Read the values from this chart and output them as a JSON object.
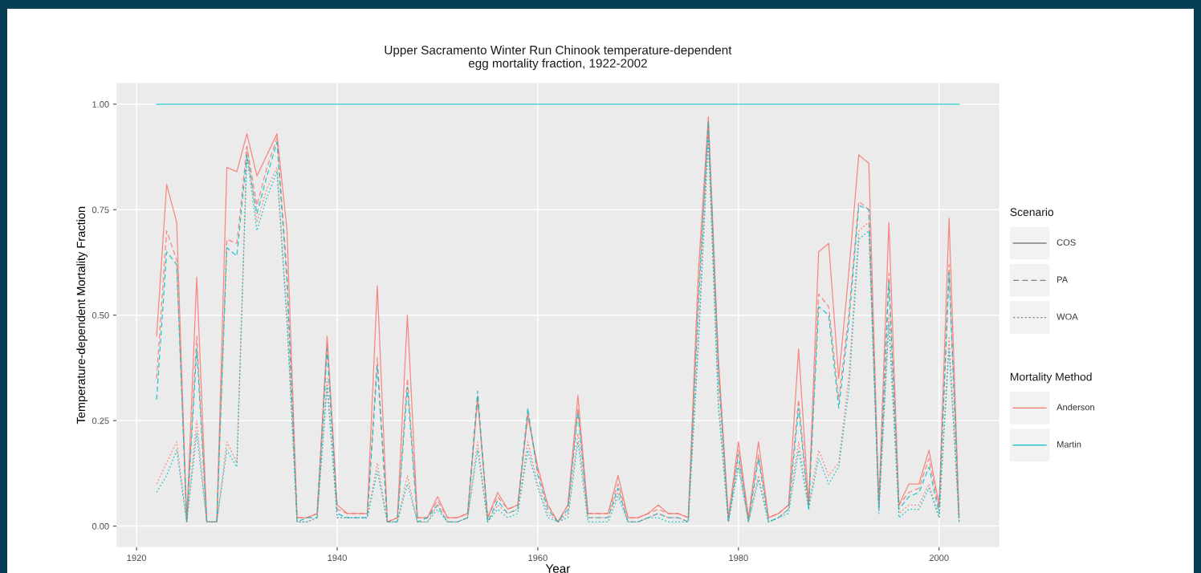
{
  "chart_data": {
    "type": "line",
    "title": "Upper Sacramento Winter Run Chinook temperature-dependent\negg mortality fraction, 1922-2002",
    "xlabel": "Year",
    "ylabel": "Temperature-dependent Mortality Fraction",
    "x": [
      1922,
      1923,
      1924,
      1925,
      1926,
      1927,
      1928,
      1929,
      1930,
      1931,
      1932,
      1933,
      1934,
      1935,
      1936,
      1937,
      1938,
      1939,
      1940,
      1941,
      1942,
      1943,
      1944,
      1945,
      1946,
      1947,
      1948,
      1949,
      1950,
      1951,
      1952,
      1953,
      1954,
      1955,
      1956,
      1957,
      1958,
      1959,
      1960,
      1961,
      1962,
      1963,
      1964,
      1965,
      1966,
      1967,
      1968,
      1969,
      1970,
      1971,
      1972,
      1973,
      1974,
      1975,
      1976,
      1977,
      1978,
      1979,
      1980,
      1981,
      1982,
      1983,
      1984,
      1985,
      1986,
      1987,
      1988,
      1989,
      1990,
      1991,
      1992,
      1993,
      1994,
      1995,
      1996,
      1997,
      1998,
      1999,
      2000,
      2001,
      2002
    ],
    "xlim": [
      1918,
      2006
    ],
    "xticks": [
      1920,
      1940,
      1960,
      1980,
      2000
    ],
    "ylim": [
      -0.05,
      1.05
    ],
    "yticks": [
      {
        "value": 0,
        "label": "0.00"
      },
      {
        "value": 0.25,
        "label": "0.25"
      },
      {
        "value": 0.5,
        "label": "0.50"
      },
      {
        "value": 0.75,
        "label": "0.75"
      },
      {
        "value": 1,
        "label": "1.00"
      }
    ],
    "grid": true,
    "annotations": [
      "Scenario",
      "COS",
      "PA",
      "WOA",
      "Mortality Method",
      "Anderson",
      "Martin"
    ],
    "series": [
      {
        "color": "#f8766d",
        "line_style": "solid",
        "values": [
          0.45,
          0.81,
          0.72,
          0.01,
          0.59,
          0.01,
          0.01,
          0.85,
          0.84,
          0.93,
          0.83,
          0.88,
          0.93,
          0.7,
          0.02,
          0.02,
          0.03,
          0.45,
          0.05,
          0.03,
          0.03,
          0.03,
          0.57,
          0.01,
          0.02,
          0.5,
          0.02,
          0.02,
          0.07,
          0.02,
          0.02,
          0.03,
          0.3,
          0.02,
          0.08,
          0.04,
          0.05,
          0.26,
          0.14,
          0.05,
          0.01,
          0.05,
          0.31,
          0.03,
          0.03,
          0.03,
          0.12,
          0.02,
          0.02,
          0.03,
          0.05,
          0.03,
          0.03,
          0.02,
          0.6,
          0.97,
          0.4,
          0.02,
          0.2,
          0.02,
          0.2,
          0.02,
          0.03,
          0.05,
          0.42,
          0.05,
          0.65,
          0.67,
          0.35,
          0.6,
          0.88,
          0.86,
          0.05,
          0.72,
          0.05,
          0.1,
          0.1,
          0.18,
          0.05,
          0.73,
          0.02
        ]
      },
      {
        "color": "#00bfc4",
        "line_style": "solid",
        "values": [
          1,
          1,
          1,
          1,
          1,
          1,
          1,
          1,
          1,
          1,
          1,
          1,
          1,
          1,
          1,
          1,
          1,
          1,
          1,
          1,
          1,
          1,
          1,
          1,
          1,
          1,
          1,
          1,
          1,
          1,
          1,
          1,
          1,
          1,
          1,
          1,
          1,
          1,
          1,
          1,
          1,
          1,
          1,
          1,
          1,
          1,
          1,
          1,
          1,
          1,
          1,
          1,
          1,
          1,
          1,
          1,
          1,
          1,
          1,
          1,
          1,
          1,
          1,
          1,
          1,
          1,
          1,
          1,
          1,
          1,
          1,
          1,
          1,
          1,
          1,
          1,
          1,
          1,
          1,
          1,
          1
        ]
      },
      {
        "color": "#f8766d",
        "line_style": "dashed",
        "values": [
          0.35,
          0.7,
          0.63,
          0.01,
          0.45,
          0.01,
          0.01,
          0.68,
          0.67,
          0.9,
          0.76,
          0.85,
          0.92,
          0.6,
          0.02,
          0.02,
          0.03,
          0.43,
          0.04,
          0.03,
          0.03,
          0.03,
          0.4,
          0.01,
          0.02,
          0.35,
          0.02,
          0.02,
          0.06,
          0.02,
          0.02,
          0.03,
          0.31,
          0.02,
          0.07,
          0.04,
          0.05,
          0.27,
          0.13,
          0.05,
          0.01,
          0.05,
          0.28,
          0.03,
          0.03,
          0.03,
          0.1,
          0.02,
          0.02,
          0.03,
          0.04,
          0.03,
          0.03,
          0.02,
          0.55,
          0.95,
          0.38,
          0.02,
          0.18,
          0.02,
          0.17,
          0.02,
          0.03,
          0.05,
          0.3,
          0.05,
          0.55,
          0.52,
          0.3,
          0.5,
          0.77,
          0.75,
          0.05,
          0.6,
          0.05,
          0.08,
          0.09,
          0.16,
          0.04,
          0.62,
          0.02
        ]
      },
      {
        "color": "#00bfc4",
        "line_style": "dashed",
        "values": [
          0.3,
          0.65,
          0.62,
          0.01,
          0.42,
          0.01,
          0.01,
          0.66,
          0.64,
          0.88,
          0.74,
          0.83,
          0.91,
          0.58,
          0.01,
          0.02,
          0.02,
          0.42,
          0.03,
          0.02,
          0.02,
          0.02,
          0.38,
          0.01,
          0.01,
          0.33,
          0.01,
          0.02,
          0.05,
          0.01,
          0.01,
          0.02,
          0.32,
          0.01,
          0.06,
          0.03,
          0.04,
          0.28,
          0.12,
          0.04,
          0.01,
          0.04,
          0.27,
          0.02,
          0.02,
          0.02,
          0.09,
          0.01,
          0.01,
          0.02,
          0.03,
          0.02,
          0.02,
          0.01,
          0.52,
          0.96,
          0.36,
          0.01,
          0.17,
          0.01,
          0.16,
          0.01,
          0.02,
          0.04,
          0.28,
          0.04,
          0.52,
          0.5,
          0.28,
          0.48,
          0.76,
          0.75,
          0.04,
          0.58,
          0.04,
          0.07,
          0.08,
          0.14,
          0.03,
          0.6,
          0.01
        ]
      },
      {
        "color": "#f8766d",
        "line_style": "dotted",
        "values": [
          0.1,
          0.15,
          0.2,
          0.01,
          0.25,
          0.01,
          0.01,
          0.2,
          0.15,
          0.9,
          0.72,
          0.8,
          0.85,
          0.5,
          0.01,
          0.01,
          0.02,
          0.35,
          0.02,
          0.02,
          0.02,
          0.02,
          0.15,
          0.01,
          0.01,
          0.12,
          0.01,
          0.01,
          0.05,
          0.01,
          0.01,
          0.02,
          0.2,
          0.01,
          0.05,
          0.03,
          0.04,
          0.2,
          0.1,
          0.03,
          0.01,
          0.03,
          0.22,
          0.02,
          0.02,
          0.02,
          0.08,
          0.01,
          0.01,
          0.02,
          0.03,
          0.02,
          0.02,
          0.01,
          0.45,
          0.93,
          0.3,
          0.01,
          0.15,
          0.01,
          0.12,
          0.01,
          0.02,
          0.04,
          0.2,
          0.05,
          0.18,
          0.12,
          0.15,
          0.35,
          0.7,
          0.72,
          0.04,
          0.5,
          0.03,
          0.05,
          0.05,
          0.1,
          0.02,
          0.45,
          0.01
        ]
      },
      {
        "color": "#00bfc4",
        "line_style": "dotted",
        "values": [
          0.08,
          0.12,
          0.18,
          0.01,
          0.22,
          0.01,
          0.01,
          0.18,
          0.14,
          0.88,
          0.7,
          0.78,
          0.84,
          0.48,
          0.01,
          0.01,
          0.02,
          0.33,
          0.02,
          0.02,
          0.02,
          0.02,
          0.13,
          0.01,
          0.01,
          0.1,
          0.01,
          0.01,
          0.04,
          0.01,
          0.01,
          0.02,
          0.18,
          0.01,
          0.04,
          0.02,
          0.03,
          0.18,
          0.09,
          0.02,
          0.01,
          0.02,
          0.2,
          0.01,
          0.01,
          0.01,
          0.07,
          0.01,
          0.01,
          0.02,
          0.02,
          0.01,
          0.01,
          0.01,
          0.42,
          0.92,
          0.28,
          0.01,
          0.14,
          0.01,
          0.11,
          0.01,
          0.02,
          0.03,
          0.18,
          0.04,
          0.16,
          0.1,
          0.14,
          0.32,
          0.68,
          0.7,
          0.03,
          0.48,
          0.02,
          0.04,
          0.04,
          0.09,
          0.02,
          0.42,
          0.01
        ]
      }
    ]
  }
}
